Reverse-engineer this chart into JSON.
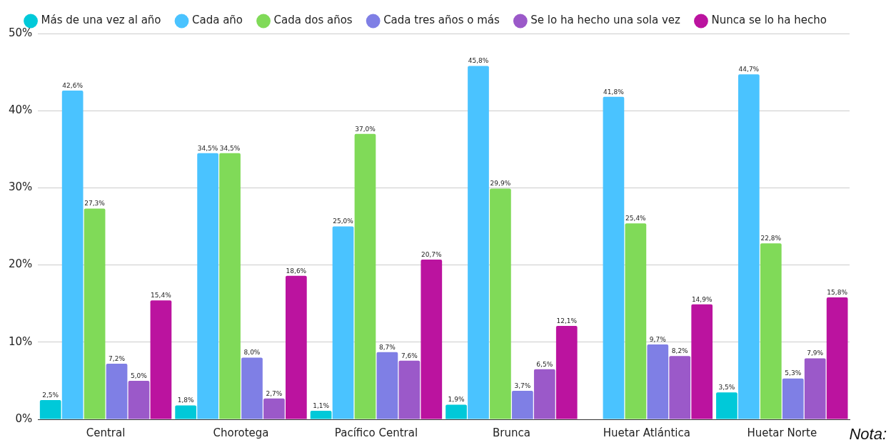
{
  "chart_data": {
    "type": "bar",
    "categories": [
      "Central",
      "Chorotega",
      "Pacífico Central",
      "Brunca",
      "Huetar Atlántica",
      "Huetar Norte"
    ],
    "series": [
      {
        "name": "Más de una vez al año",
        "color": "#00c9d9",
        "values": [
          2.5,
          1.8,
          1.1,
          1.9,
          null,
          3.5
        ],
        "value_labels": [
          "2,5%",
          "1,8%",
          "1,1%",
          "1,9%",
          null,
          "3,5%"
        ]
      },
      {
        "name": "Cada año",
        "color": "#4ac3ff",
        "values": [
          42.6,
          34.5,
          25.0,
          45.8,
          41.8,
          44.7
        ],
        "value_labels": [
          "42,6%",
          "34,5%",
          "25,0%",
          "45,8%",
          "41,8%",
          "44,7%"
        ]
      },
      {
        "name": "Cada dos años",
        "color": "#80da58",
        "values": [
          27.3,
          34.5,
          37.0,
          29.9,
          25.4,
          22.8
        ],
        "value_labels": [
          "27,3%",
          "34,5%",
          "37,0%",
          "29,9%",
          "25,4%",
          "22,8%"
        ]
      },
      {
        "name": "Cada tres años o más",
        "color": "#7f7fe5",
        "values": [
          7.2,
          8.0,
          8.7,
          3.7,
          9.7,
          5.3
        ],
        "value_labels": [
          "7,2%",
          "8,0%",
          "8,7%",
          "3,7%",
          "9,7%",
          "5,3%"
        ]
      },
      {
        "name": "Se lo ha hecho una sola vez",
        "color": "#9b59c9",
        "values": [
          5.0,
          2.7,
          7.6,
          6.5,
          8.2,
          7.9
        ],
        "value_labels": [
          "5,0%",
          "2,7%",
          "7,6%",
          "6,5%",
          "8,2%",
          "7,9%"
        ]
      },
      {
        "name": "Nunca se lo ha hecho",
        "color": "#bb139f",
        "values": [
          15.4,
          18.6,
          20.7,
          12.1,
          14.9,
          15.8
        ],
        "value_labels": [
          "15,4%",
          "18,6%",
          "20,7%",
          "12,1%",
          "14,9%",
          "15,8%"
        ]
      }
    ],
    "ylim": [
      0,
      50
    ],
    "yticks": [
      {
        "value": 0,
        "label": "0%"
      },
      {
        "value": 10,
        "label": "10%"
      },
      {
        "value": 20,
        "label": "20%"
      },
      {
        "value": 30,
        "label": "30%"
      },
      {
        "value": 40,
        "label": "40%"
      },
      {
        "value": 50,
        "label": "50%"
      }
    ],
    "grid": "y",
    "legend": "top",
    "annotations": [
      "Nota:"
    ]
  }
}
